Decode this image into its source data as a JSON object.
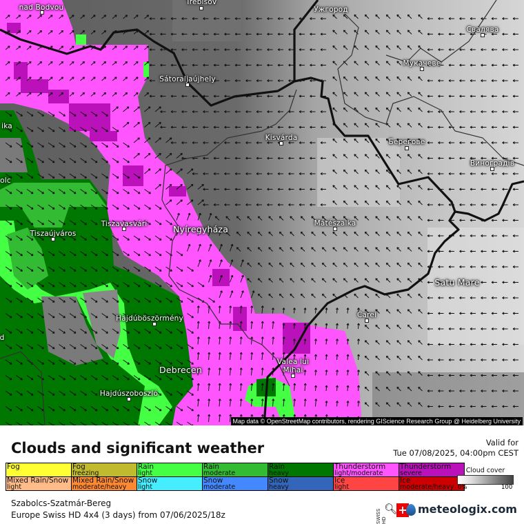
{
  "map": {
    "labels": [
      {
        "text": "nad Bodvou",
        "marker": true
      },
      {
        "text": "Trebišov",
        "marker": true
      },
      {
        "text": "Ужгород",
        "marker": false
      },
      {
        "text": "Свалява",
        "marker": true
      },
      {
        "text": "Мукачеве",
        "marker": true
      },
      {
        "text": "Sátoraljaújhely",
        "marker": true
      },
      {
        "text": "Kisvárda",
        "marker": true
      },
      {
        "text": "Берегове",
        "marker": true
      },
      {
        "text": "Виноградів",
        "marker": true
      },
      {
        "text": "ika",
        "marker": false
      },
      {
        "text": "olc",
        "marker": false
      },
      {
        "text": "Tiszaújváros",
        "marker": true
      },
      {
        "text": "Tiszavasvári",
        "marker": true
      },
      {
        "text": "Nyíregyháza",
        "marker": false
      },
      {
        "text": "Mátészalka",
        "marker": true
      },
      {
        "text": "Satu Mare",
        "marker": false
      },
      {
        "text": "Carei",
        "marker": true
      },
      {
        "text": "Hajdúböszörmény",
        "marker": true
      },
      {
        "text": "Debrecen",
        "marker": false
      },
      {
        "text": "Hajdúszoboszló",
        "marker": true
      },
      {
        "text": "Valea lui",
        "marker": false
      },
      {
        "text": "Mihai",
        "marker": true
      },
      {
        "text": "d",
        "marker": false
      }
    ],
    "attribution": "Map data © OpenStreetMap contributors, rendering GIScience Research Group @ Heidelberg University",
    "colors": {
      "fog": "#ffff33",
      "fog_freezing": "#c0c030",
      "rain_light": "#44ff44",
      "rain_moderate": "#33bb33",
      "rain_heavy": "#007700",
      "ts_light": "#ff55ff",
      "ts_severe": "#bb11bb"
    }
  },
  "header": {
    "title": "Clouds and significant weather",
    "valid_label": "Valid for",
    "valid_time": "Tue 07/08/2025, 04:00pm CEST"
  },
  "legend": {
    "row1": [
      {
        "main": "Fog",
        "sub": "",
        "color": "#ffff33"
      },
      {
        "main": "Fog",
        "sub": "freezing",
        "color": "#c0bb2e"
      },
      {
        "main": "Rain",
        "sub": "light",
        "color": "#44ff44"
      },
      {
        "main": "Rain",
        "sub": "moderate",
        "color": "#33bb33"
      },
      {
        "main": "Rain",
        "sub": "heavy",
        "color": "#007700"
      },
      {
        "main": "Thunderstorm",
        "sub": "light/moderate",
        "color": "#ff55ff"
      },
      {
        "main": "Thunderstorm",
        "sub": "severe",
        "color": "#bb11bb"
      }
    ],
    "row2": [
      {
        "main": "Mixed Rain/Snow",
        "sub": "light",
        "color": "#ffbb88"
      },
      {
        "main": "Mixed Rain/Snow",
        "sub": "moderate/heavy",
        "color": "#ff8833"
      },
      {
        "main": "Snow",
        "sub": "light",
        "color": "#44eeff"
      },
      {
        "main": "Snow",
        "sub": "moderate",
        "color": "#4488ff"
      },
      {
        "main": "Snow",
        "sub": "heavy",
        "color": "#3366bb"
      },
      {
        "main": "Ice",
        "sub": "light",
        "color": "#ff4444"
      },
      {
        "main": "Ice",
        "sub": "moderate/heavy",
        "color": "#cc0000"
      }
    ],
    "cloud_cover": {
      "title": "Cloud cover",
      "min": "0%",
      "max": "100"
    }
  },
  "footer": {
    "region": "Szabolcs-Szatmár-Bereg",
    "model": "Europe Swiss HD 4x4 (3 days) from  07/06/2025/18z",
    "swiss_hd": "SWISS HD",
    "flag": "+",
    "brand": "meteologix.com"
  }
}
